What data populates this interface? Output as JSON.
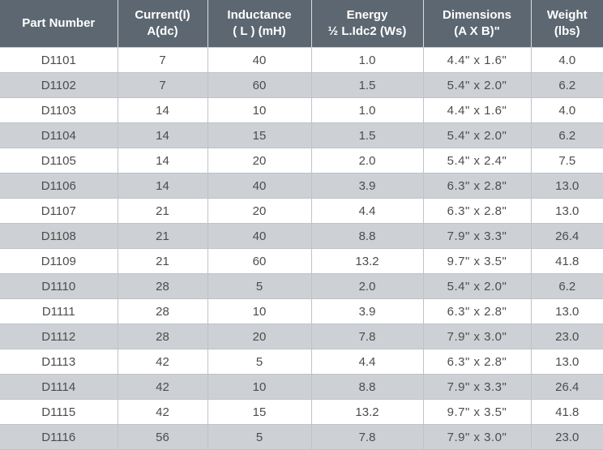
{
  "table": {
    "headers": [
      [
        "Part Number"
      ],
      [
        "Current(I)",
        "A(dc)"
      ],
      [
        "Inductance",
        "( L ) (mH)"
      ],
      [
        "Energy",
        "½ L.Idc2 (Ws)"
      ],
      [
        "Dimensions",
        "(A X B)\""
      ],
      [
        "Weight",
        "(lbs)"
      ]
    ],
    "rows": [
      [
        "D1101",
        "7",
        "40",
        "1.0",
        "4.4\" x 1.6\"",
        "4.0"
      ],
      [
        "D1102",
        "7",
        "60",
        "1.5",
        "5.4\" x 2.0\"",
        "6.2"
      ],
      [
        "D1103",
        "14",
        "10",
        "1.0",
        "4.4\" x 1.6\"",
        "4.0"
      ],
      [
        "D1104",
        "14",
        "15",
        "1.5",
        "5.4\" x 2.0\"",
        "6.2"
      ],
      [
        "D1105",
        "14",
        "20",
        "2.0",
        "5.4\" x 2.4\"",
        "7.5"
      ],
      [
        "D1106",
        "14",
        "40",
        "3.9",
        "6.3\" x 2.8\"",
        "13.0"
      ],
      [
        "D1107",
        "21",
        "20",
        "4.4",
        "6.3\" x 2.8\"",
        "13.0"
      ],
      [
        "D1108",
        "21",
        "40",
        "8.8",
        "7.9\" x 3.3\"",
        "26.4"
      ],
      [
        "D1109",
        "21",
        "60",
        "13.2",
        "9.7\" x 3.5\"",
        "41.8"
      ],
      [
        "D1110",
        "28",
        "5",
        "2.0",
        "5.4\" x 2.0\"",
        "6.2"
      ],
      [
        "D1111",
        "28",
        "10",
        "3.9",
        "6.3\" x 2.8\"",
        "13.0"
      ],
      [
        "D1112",
        "28",
        "20",
        "7.8",
        "7.9\" x 3.0\"",
        "23.0"
      ],
      [
        "D1113",
        "42",
        "5",
        "4.4",
        "6.3\" x 2.8\"",
        "13.0"
      ],
      [
        "D1114",
        "42",
        "10",
        "8.8",
        "7.9\" x 3.3\"",
        "26.4"
      ],
      [
        "D1115",
        "42",
        "15",
        "13.2",
        "9.7\" x 3.5\"",
        "41.8"
      ],
      [
        "D1116",
        "56",
        "5",
        "7.8",
        "7.9\" x 3.0\"",
        "23.0"
      ]
    ]
  },
  "colors": {
    "header_bg": "#5d6771",
    "header_text": "#ffffff",
    "row_alt_bg": "#cdd0d4",
    "cell_text": "#4d4d4d"
  }
}
